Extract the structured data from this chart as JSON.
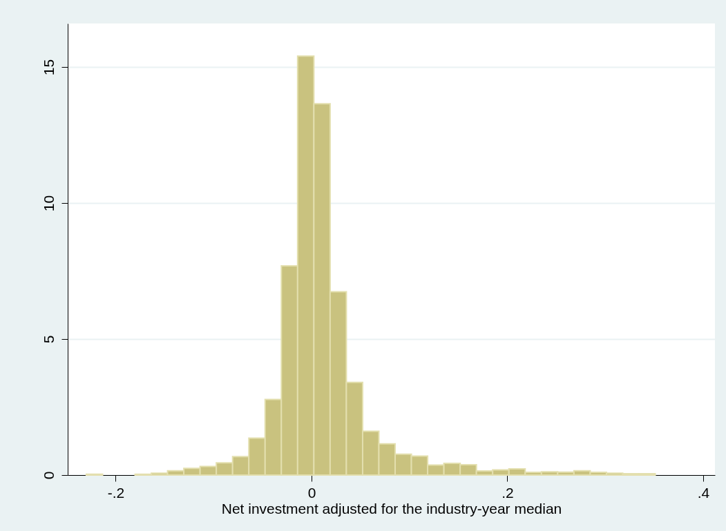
{
  "chart_data": {
    "type": "histogram",
    "xlabel": "Net investment adjusted for the industry-year median",
    "bins": [
      -0.23,
      -0.2134,
      -0.1968,
      -0.1802,
      -0.1636,
      -0.147,
      -0.1304,
      -0.1138,
      -0.0972,
      -0.0806,
      -0.064,
      -0.0474,
      -0.0308,
      -0.0142,
      0.0024,
      0.019,
      0.0356,
      0.0522,
      0.0688,
      0.0854,
      0.102,
      0.1186,
      0.1352,
      0.1518,
      0.1684,
      0.185,
      0.2016,
      0.2182,
      0.2348,
      0.2514,
      0.268,
      0.2846,
      0.3012,
      0.3178,
      0.3344,
      0.351
    ],
    "values": [
      0.03,
      0,
      0,
      0.03,
      0.07,
      0.16,
      0.25,
      0.32,
      0.45,
      0.68,
      1.36,
      2.78,
      7.69,
      15.4,
      13.65,
      6.74,
      3.41,
      1.61,
      1.15,
      0.77,
      0.7,
      0.37,
      0.43,
      0.38,
      0.15,
      0.19,
      0.23,
      0.1,
      0.12,
      0.11,
      0.16,
      0.1,
      0.07,
      0.05,
      0.05
    ],
    "color": "#c9c27f",
    "xlim": [
      -0.249,
      0.412
    ],
    "xticks": [
      {
        "value": -0.2,
        "label": "-.2"
      },
      0,
      {
        "value": 0.2,
        "label": ".2"
      },
      {
        "value": 0.4,
        "label": ".4"
      }
    ],
    "ylim": [
      0,
      16.6
    ],
    "yticks": [
      0,
      5,
      10,
      15
    ],
    "grid": "y"
  }
}
